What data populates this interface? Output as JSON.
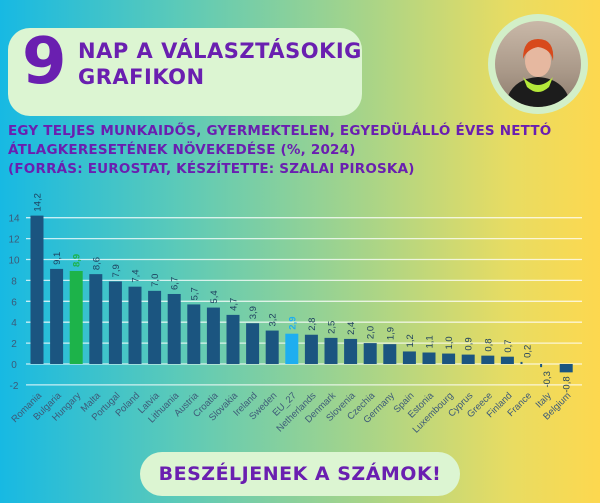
{
  "header": {
    "number": "9",
    "line1": "NAP A VÁLASZTÁSOKIG",
    "line2": "GRAFIKON"
  },
  "subtitle": {
    "line1": "EGY TELJES MUNKAIDŐS, GYERMEKTELEN, EGYEDÜLÁLLÓ ÉVES NETTÓ",
    "line2": "ÁTLAGKERESETÉNEK NÖVEKEDÉSE (%, 2024)",
    "line3": "(FORRÁS: EUROSTAT, KÉSZÍTETTE: SZALAI PIROSKA)"
  },
  "footer_button": "BESZÉLJENEK A SZÁMOK!",
  "colors": {
    "bar": "#1b5580",
    "highlight_hungary": "#1db34a",
    "highlight_eu": "#1eaef0",
    "title": "#6a1fb0"
  },
  "chart_data": {
    "type": "bar",
    "title": "Egy teljes munkaidős, gyermektelen, egyedülálló éves nettó átlagkeresetének növekedése (%, 2024)",
    "categories": [
      "Romania",
      "Bulgaria",
      "Hungary",
      "Malta",
      "Portugal",
      "Poland",
      "Latvia",
      "Lithuania",
      "Austria",
      "Croatia",
      "Slovakia",
      "Ireland",
      "Sweden",
      "EU_27",
      "Netherlands",
      "Denmark",
      "Slovenia",
      "Czechia",
      "Germany",
      "Spain",
      "Estonia",
      "Luxembourg",
      "Cyprus",
      "Greece",
      "Finland",
      "France",
      "Italy",
      "Belgium"
    ],
    "values": [
      14.2,
      9.1,
      8.9,
      8.6,
      7.9,
      7.4,
      7.0,
      6.7,
      5.7,
      5.4,
      4.7,
      3.9,
      3.2,
      2.9,
      2.8,
      2.5,
      2.4,
      2.0,
      1.9,
      1.2,
      1.1,
      1.0,
      0.9,
      0.8,
      0.7,
      0.2,
      -0.3,
      -0.8
    ],
    "value_labels": [
      "14,2",
      "9,1",
      "8,9",
      "8,6",
      "7,9",
      "7,4",
      "7,0",
      "6,7",
      "5,7",
      "5,4",
      "4,7",
      "3,9",
      "3,2",
      "2,9",
      "2,8",
      "2,5",
      "2,4",
      "2,0",
      "1,9",
      "1,2",
      "1,1",
      "1,0",
      "0,9",
      "0,8",
      "0,7",
      "0,2",
      "-0,3",
      "-0,8"
    ],
    "highlight": {
      "Hungary": "#1db34a",
      "EU_27": "#1eaef0"
    },
    "yticks": [
      "14",
      "12",
      "10",
      "8",
      "6",
      "4",
      "2",
      "0",
      "-2"
    ],
    "ytick_values": [
      14,
      12,
      10,
      8,
      6,
      4,
      2,
      0,
      -2
    ],
    "ylim": [
      -2,
      14
    ],
    "xlabel": "",
    "ylabel": "",
    "grid": true,
    "legend": "none"
  }
}
